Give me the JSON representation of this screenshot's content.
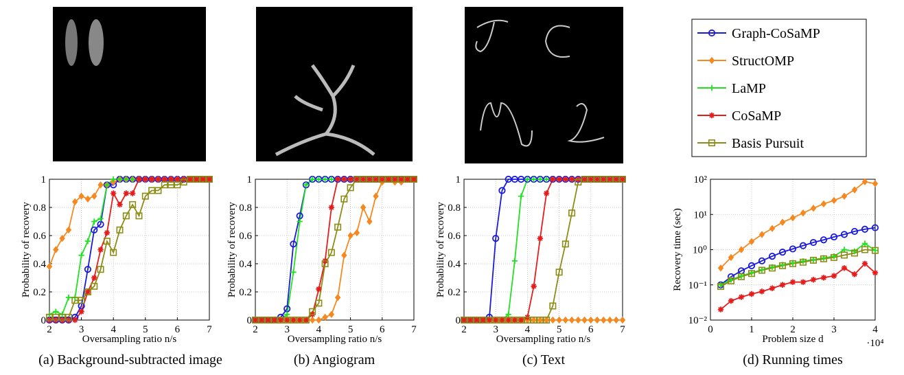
{
  "legend": [
    {
      "name": "Graph-CoSaMP",
      "color": "#1a1adb",
      "marker": "circle"
    },
    {
      "name": "StructOMP",
      "color": "#f5891f",
      "marker": "diamond"
    },
    {
      "name": "LaMP",
      "color": "#22e022",
      "marker": "plus"
    },
    {
      "name": "CoSaMP",
      "color": "#e51c1c",
      "marker": "star"
    },
    {
      "name": "Basis Pursuit",
      "color": "#8c8c14",
      "marker": "square"
    }
  ],
  "chart_data": [
    {
      "type": "line",
      "caption": "(a) Background-subtracted image",
      "xlabel": "Oversampling ratio n/s",
      "ylabel": "Probability of recovery",
      "x": [
        2,
        2.2,
        2.4,
        2.6,
        2.8,
        3,
        3.2,
        3.4,
        3.6,
        3.8,
        4,
        4.2,
        4.4,
        4.6,
        4.8,
        5,
        5.2,
        5.4,
        5.6,
        5.8,
        6,
        6.2,
        6.4,
        6.6,
        6.8,
        7
      ],
      "xlim": [
        2,
        7
      ],
      "xticks": [
        2,
        3,
        4,
        5,
        6,
        7
      ],
      "ylim": [
        0,
        1
      ],
      "yticks": [
        0,
        0.2,
        0.4,
        0.6,
        0.8,
        1
      ],
      "grid": true,
      "series": [
        {
          "values": [
            0,
            0,
            0,
            0,
            0.02,
            0.1,
            0.36,
            0.64,
            0.68,
            0.96,
            0.96,
            1,
            1,
            1,
            1,
            1,
            1,
            1,
            1,
            1,
            1,
            1,
            1,
            1,
            1,
            1
          ]
        },
        {
          "values": [
            0.38,
            0.5,
            0.58,
            0.64,
            0.84,
            0.88,
            0.86,
            0.88,
            0.96,
            0.96,
            0.98,
            1,
            1,
            1,
            1,
            1,
            1,
            1,
            1,
            1,
            1,
            1,
            1,
            1,
            1,
            1
          ]
        },
        {
          "values": [
            0.04,
            0.06,
            0.04,
            0.16,
            0.16,
            0.46,
            0.56,
            0.7,
            0.72,
            0.96,
            1,
            1,
            1,
            1,
            1,
            1,
            1,
            1,
            1,
            1,
            1,
            1,
            1,
            1,
            1,
            1
          ]
        },
        {
          "values": [
            0,
            0,
            0,
            0,
            0,
            0.06,
            0.2,
            0.3,
            0.5,
            0.62,
            0.9,
            0.82,
            0.9,
            0.9,
            1,
            1,
            1,
            1,
            1,
            1,
            1,
            1,
            1,
            1,
            1,
            1
          ]
        },
        {
          "values": [
            0.02,
            0.02,
            0.02,
            0.02,
            0.14,
            0.14,
            0.2,
            0.24,
            0.36,
            0.56,
            0.48,
            0.64,
            0.74,
            0.82,
            0.74,
            0.88,
            0.92,
            0.92,
            0.96,
            0.96,
            0.96,
            0.98,
            1,
            1,
            1,
            1
          ]
        }
      ]
    },
    {
      "type": "line",
      "caption": "(b) Angiogram",
      "xlabel": "Oversampling ratio n/s",
      "ylabel": "Probability of recovery",
      "x": [
        2,
        2.2,
        2.4,
        2.6,
        2.8,
        3,
        3.2,
        3.4,
        3.6,
        3.8,
        4,
        4.2,
        4.4,
        4.6,
        4.8,
        5,
        5.2,
        5.4,
        5.6,
        5.8,
        6,
        6.2,
        6.4,
        6.6,
        6.8,
        7
      ],
      "xlim": [
        2,
        7
      ],
      "xticks": [
        2,
        3,
        4,
        5,
        6,
        7
      ],
      "ylim": [
        0,
        1
      ],
      "yticks": [
        0,
        0.2,
        0.4,
        0.6,
        0.8,
        1
      ],
      "grid": true,
      "series": [
        {
          "values": [
            0,
            0,
            0,
            0,
            0.02,
            0.08,
            0.54,
            0.74,
            0.96,
            1,
            1,
            1,
            1,
            1,
            1,
            1,
            1,
            1,
            1,
            1,
            1,
            1,
            1,
            1,
            1,
            1
          ]
        },
        {
          "values": [
            0,
            0,
            0,
            0,
            0,
            0,
            0,
            0,
            0,
            0,
            0,
            0.02,
            0.04,
            0.16,
            0.46,
            0.6,
            0.62,
            0.8,
            0.7,
            0.88,
            0.98,
            1,
            0.98,
            0.98,
            1,
            1
          ]
        },
        {
          "values": [
            0,
            0,
            0,
            0,
            0,
            0.04,
            0.34,
            0.7,
            0.96,
            1,
            1,
            1,
            1,
            1,
            1,
            1,
            1,
            1,
            1,
            1,
            1,
            1,
            1,
            1,
            1,
            1
          ]
        },
        {
          "values": [
            0,
            0,
            0,
            0,
            0,
            0,
            0,
            0,
            0,
            0.04,
            0.22,
            0.42,
            0.8,
            1,
            1,
            1,
            1,
            1,
            1,
            1,
            1,
            1,
            1,
            1,
            1,
            1
          ]
        },
        {
          "values": [
            0,
            0,
            0,
            0,
            0,
            0,
            0,
            0,
            0,
            0.06,
            0.12,
            0.4,
            0.48,
            0.66,
            0.86,
            0.94,
            1,
            1,
            1,
            1,
            1,
            1,
            1,
            1,
            1,
            1
          ]
        }
      ]
    },
    {
      "type": "line",
      "caption": "(c) Text",
      "xlabel": "Oversampling ratio n/s",
      "ylabel": "Probability of recovery",
      "x": [
        2,
        2.2,
        2.4,
        2.6,
        2.8,
        3,
        3.2,
        3.4,
        3.6,
        3.8,
        4,
        4.2,
        4.4,
        4.6,
        4.8,
        5,
        5.2,
        5.4,
        5.6,
        5.8,
        6,
        6.2,
        6.4,
        6.6,
        6.8,
        7
      ],
      "xlim": [
        2,
        7
      ],
      "xticks": [
        2,
        3,
        4,
        5,
        6,
        7
      ],
      "ylim": [
        0,
        1
      ],
      "yticks": [
        0,
        0.2,
        0.4,
        0.6,
        0.8,
        1
      ],
      "grid": true,
      "series": [
        {
          "values": [
            0,
            0,
            0,
            0,
            0.02,
            0.58,
            0.92,
            1,
            1,
            1,
            1,
            1,
            1,
            1,
            1,
            1,
            1,
            1,
            1,
            1,
            1,
            1,
            1,
            1,
            1,
            1
          ]
        },
        {
          "values": [
            0,
            0,
            0,
            0,
            0,
            0,
            0,
            0,
            0,
            0,
            0,
            0,
            0,
            0,
            0,
            0,
            0,
            0,
            0,
            0,
            0,
            0,
            0,
            0,
            0,
            0
          ]
        },
        {
          "values": [
            0,
            0,
            0,
            0,
            0,
            0,
            0,
            0.04,
            0.42,
            0.88,
            1,
            1,
            1,
            1,
            1,
            1,
            1,
            1,
            1,
            1,
            1,
            1,
            1,
            1,
            1,
            1
          ]
        },
        {
          "values": [
            0,
            0,
            0,
            0,
            0,
            0,
            0,
            0,
            0,
            0,
            0.02,
            0.24,
            0.58,
            0.9,
            1,
            1,
            1,
            1,
            1,
            1,
            1,
            1,
            1,
            1,
            1,
            1
          ]
        },
        {
          "values": [
            0,
            0,
            0,
            0,
            0,
            0,
            0,
            0,
            0,
            0,
            0,
            0,
            0,
            0,
            0.1,
            0.34,
            0.54,
            0.76,
            0.98,
            1,
            1,
            1,
            1,
            1,
            1,
            1
          ]
        }
      ]
    },
    {
      "type": "line",
      "caption": "(d) Running times",
      "xlabel": "Problem size d",
      "ylabel": "Recovery time (sec)",
      "x_scale_label": "·10⁴",
      "x": [
        2500,
        5000,
        7500,
        10000,
        12500,
        15000,
        17500,
        20000,
        22500,
        25000,
        27500,
        30000,
        32500,
        35000,
        37500,
        40000
      ],
      "xlim": [
        0,
        40000
      ],
      "xticks": [
        0,
        {
          "value": 10000,
          "label": "1"
        },
        {
          "value": 20000,
          "label": "2"
        },
        {
          "value": 30000,
          "label": "3"
        },
        {
          "value": 40000,
          "label": "4"
        }
      ],
      "ylim": [
        0.01,
        100
      ],
      "log_y": true,
      "yticks": [
        {
          "value": 0.01,
          "label": "10⁻²"
        },
        {
          "value": 0.1,
          "label": "10⁻¹"
        },
        {
          "value": 1,
          "label": "10⁰"
        },
        {
          "value": 10,
          "label": "10¹"
        },
        {
          "value": 100,
          "label": "10²"
        }
      ],
      "grid": true,
      "series": [
        {
          "values": [
            0.1,
            0.17,
            0.25,
            0.35,
            0.48,
            0.65,
            0.85,
            1.05,
            1.3,
            1.6,
            1.9,
            2.3,
            2.7,
            3.3,
            3.8,
            4.2
          ]
        },
        {
          "values": [
            0.3,
            0.6,
            1.0,
            1.7,
            2.7,
            4,
            6,
            8,
            11,
            15,
            20,
            25,
            33,
            50,
            85,
            75
          ]
        },
        {
          "values": [
            0.1,
            0.14,
            0.18,
            0.22,
            0.27,
            0.32,
            0.37,
            0.42,
            0.47,
            0.52,
            0.58,
            0.65,
            1.0,
            0.9,
            1.5,
            0.95
          ]
        },
        {
          "values": [
            0.02,
            0.035,
            0.045,
            0.055,
            0.065,
            0.08,
            0.1,
            0.12,
            0.12,
            0.14,
            0.16,
            0.18,
            0.3,
            0.2,
            0.4,
            0.22
          ]
        },
        {
          "values": [
            0.09,
            0.13,
            0.17,
            0.21,
            0.26,
            0.3,
            0.35,
            0.4,
            0.44,
            0.5,
            0.55,
            0.6,
            0.7,
            0.8,
            1.0,
            0.95
          ]
        }
      ]
    }
  ]
}
